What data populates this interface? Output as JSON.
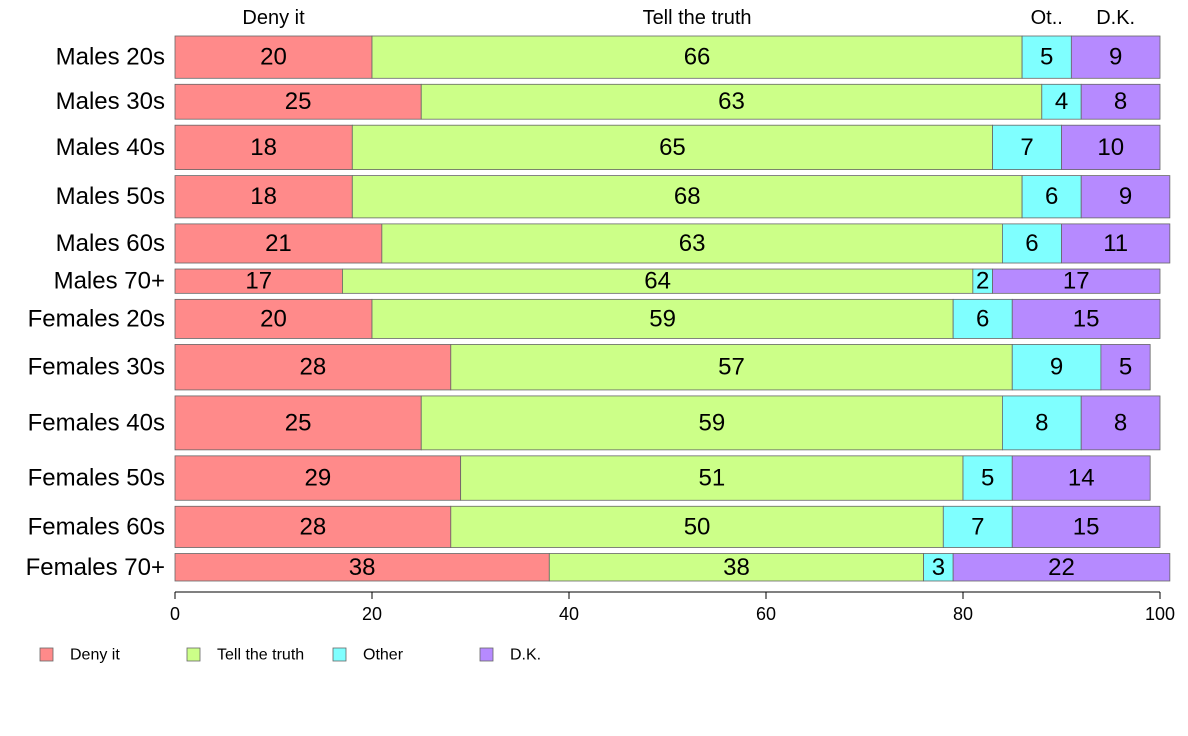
{
  "chart_data": {
    "type": "bar",
    "orientation": "horizontal",
    "stacked": true,
    "normalized_percent": true,
    "categories": [
      "Males 20s",
      "Males 30s",
      "Males 40s",
      "Males 50s",
      "Males 60s",
      "Males 70+",
      "Females 20s",
      "Females 30s",
      "Females 40s",
      "Females 50s",
      "Females 60s",
      "Females 70+"
    ],
    "series": [
      {
        "name": "Deny it",
        "color": "#FF8A8A",
        "values": [
          20,
          25,
          18,
          18,
          21,
          17,
          20,
          28,
          25,
          29,
          28,
          38
        ]
      },
      {
        "name": "Tell the truth",
        "color": "#CCFF88",
        "values": [
          66,
          63,
          65,
          68,
          63,
          64,
          59,
          57,
          59,
          51,
          50,
          38
        ]
      },
      {
        "name": "Other",
        "color": "#7FFFFF",
        "values": [
          5,
          4,
          7,
          6,
          6,
          2,
          6,
          9,
          8,
          5,
          7,
          3
        ]
      },
      {
        "name": "D.K.",
        "color": "#B68AFF",
        "values": [
          9,
          8,
          10,
          9,
          11,
          17,
          15,
          5,
          8,
          14,
          15,
          22
        ]
      }
    ],
    "category_weights": [
      40,
      33,
      42,
      40,
      37,
      23,
      37,
      43,
      51,
      42,
      39,
      26
    ],
    "top_labels": [
      "Deny it",
      "Tell the truth",
      "Ot..",
      "D.K."
    ],
    "xlim": [
      0,
      100
    ],
    "xticks": [
      0,
      20,
      40,
      60,
      80,
      100
    ],
    "legend": {
      "placement": "bottom-left",
      "items": [
        "Deny it",
        "Tell the truth",
        "Other",
        "D.K."
      ]
    },
    "grid": false,
    "title": "",
    "xlabel": "",
    "ylabel": ""
  }
}
